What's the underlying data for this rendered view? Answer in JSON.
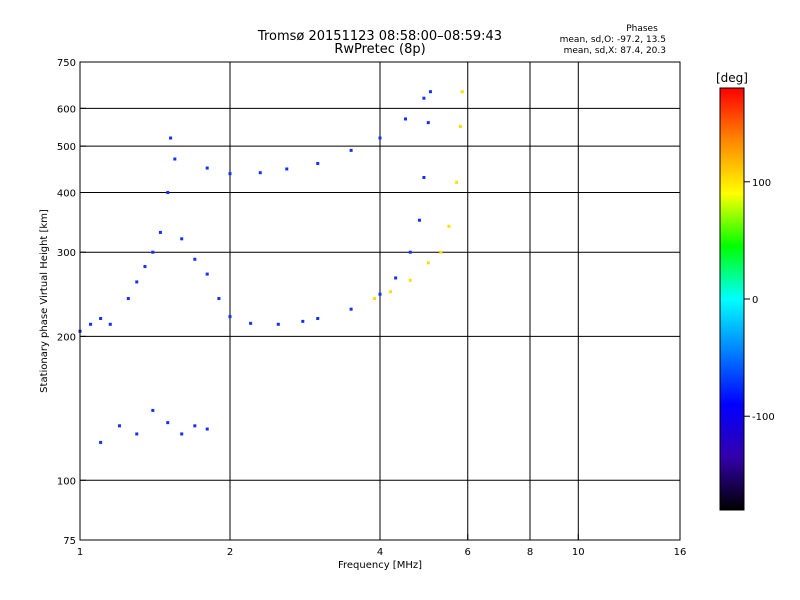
{
  "chart_data": {
    "type": "scatter",
    "title": "Tromsø 20151123 08:58:00–08:59:43",
    "subtitle": "RwPretec (8p)",
    "xlabel": "Frequency [MHz]",
    "ylabel": "Stationary phase Virtual Height [km]",
    "x_scale": "log",
    "y_scale": "log",
    "xlim": [
      1,
      16
    ],
    "ylim": [
      75,
      750
    ],
    "x_ticks": [
      1,
      2,
      4,
      6,
      8,
      10,
      16
    ],
    "y_ticks": [
      75,
      100,
      200,
      300,
      400,
      500,
      600,
      750
    ],
    "x_gridlines": [
      2,
      4,
      6,
      8,
      10
    ],
    "y_gridlines": [
      100,
      200,
      300,
      400,
      500,
      600
    ],
    "grid": true,
    "legend": {
      "title": "Phases",
      "lines": [
        "mean, sd,O:  -97.2, 13.5",
        "mean, sd,X:  87.4, 20.3"
      ],
      "placement": "top-right"
    },
    "colorbar": {
      "label": "[deg]",
      "range": [
        -180,
        180
      ],
      "ticks": [
        100,
        0,
        -100
      ],
      "colors": [
        "#ff0000",
        "#ff8800",
        "#ffff00",
        "#00ff00",
        "#00ffff",
        "#0080ff",
        "#0000ff",
        "#3300aa",
        "#000000"
      ]
    },
    "series": [
      {
        "color": "#1030ff",
        "points": [
          [
            1.25,
            240
          ],
          [
            1.3,
            260
          ],
          [
            1.35,
            280
          ],
          [
            1.4,
            300
          ],
          [
            1.45,
            330
          ],
          [
            1.5,
            400
          ],
          [
            1.52,
            520
          ],
          [
            1.55,
            470
          ],
          [
            1.6,
            320
          ],
          [
            1.7,
            290
          ],
          [
            1.8,
            270
          ],
          [
            1.9,
            240
          ],
          [
            2.0,
            220
          ],
          [
            2.2,
            213
          ],
          [
            2.5,
            212
          ],
          [
            2.8,
            215
          ],
          [
            3.0,
            218
          ],
          [
            3.5,
            228
          ],
          [
            4.0,
            245
          ],
          [
            4.3,
            265
          ],
          [
            4.6,
            300
          ],
          [
            4.8,
            350
          ],
          [
            4.9,
            430
          ],
          [
            5.0,
            560
          ],
          [
            5.05,
            650
          ]
        ]
      },
      {
        "color": "#1030ff",
        "points": [
          [
            1.8,
            450
          ],
          [
            2.0,
            438
          ],
          [
            2.3,
            440
          ],
          [
            2.6,
            448
          ],
          [
            3.0,
            460
          ],
          [
            3.5,
            490
          ],
          [
            4.0,
            520
          ],
          [
            4.5,
            570
          ],
          [
            4.9,
            630
          ]
        ]
      },
      {
        "color": "#1030ff",
        "points": [
          [
            1.0,
            205
          ],
          [
            1.05,
            212
          ],
          [
            1.1,
            218
          ],
          [
            1.15,
            212
          ]
        ]
      },
      {
        "color": "#1030ff",
        "points": [
          [
            1.1,
            120
          ],
          [
            1.2,
            130
          ],
          [
            1.3,
            125
          ],
          [
            1.4,
            140
          ],
          [
            1.5,
            132
          ],
          [
            1.6,
            125
          ],
          [
            1.7,
            130
          ],
          [
            1.8,
            128
          ]
        ]
      },
      {
        "color": "#ffdd00",
        "points": [
          [
            3.9,
            240
          ],
          [
            4.2,
            248
          ],
          [
            4.6,
            262
          ],
          [
            5.0,
            285
          ],
          [
            5.3,
            300
          ],
          [
            5.5,
            340
          ],
          [
            5.7,
            420
          ],
          [
            5.8,
            550
          ],
          [
            5.85,
            650
          ]
        ]
      }
    ]
  }
}
